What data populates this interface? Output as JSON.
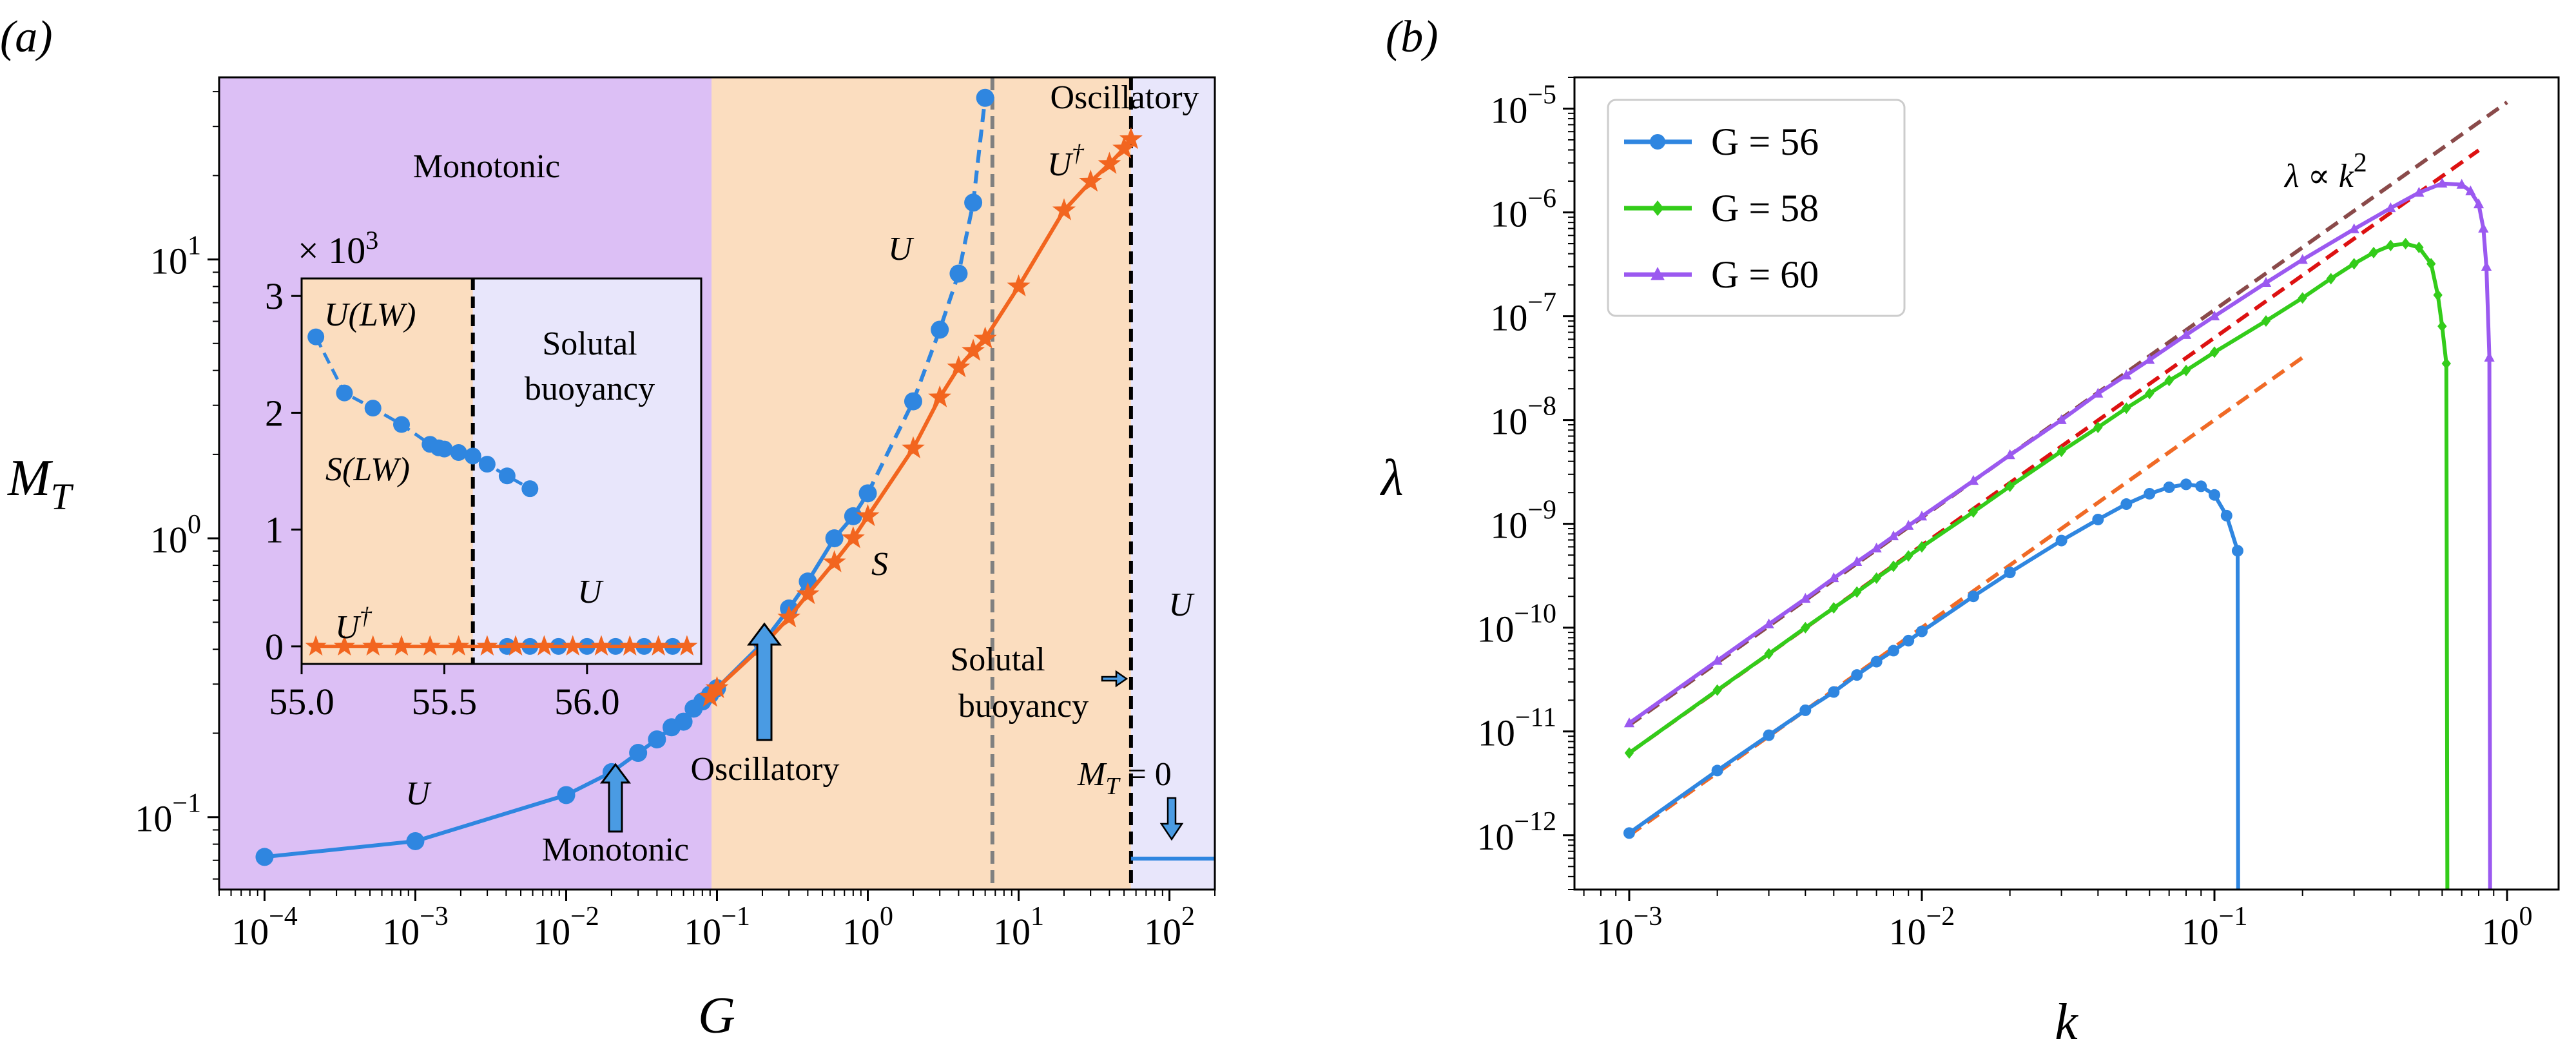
{
  "colors": {
    "monotonic_bg": "#dcbff5",
    "oscillatory_bg": "#fbddbf",
    "u_bg": "#e8e6fb",
    "blue": "#2f86e0",
    "orange": "#f2651f",
    "green": "#33cc1a",
    "purple": "#9b59f0",
    "brown": "#8a4a4a",
    "red": "#dd1111",
    "orange_dashed": "#f06a26"
  },
  "chart_data": [
    {
      "id": "a",
      "type": "scatter",
      "panel_label": "(a)",
      "xlabel": "G",
      "ylabel": "M_T",
      "xscale": "log",
      "yscale": "log",
      "xlim": [
        5e-05,
        200
      ],
      "ylim": [
        0.055,
        45
      ],
      "xticks": [
        {
          "value": 0.0001,
          "mant": "10",
          "exp": "−4"
        },
        {
          "value": 0.001,
          "mant": "10",
          "exp": "−3"
        },
        {
          "value": 0.01,
          "mant": "10",
          "exp": "−2"
        },
        {
          "value": 0.1,
          "mant": "10",
          "exp": "−1"
        },
        {
          "value": 1,
          "mant": "10",
          "exp": "0"
        },
        {
          "value": 10,
          "mant": "10",
          "exp": "1"
        },
        {
          "value": 100,
          "mant": "10",
          "exp": "2"
        }
      ],
      "yticks": [
        {
          "value": 0.1,
          "mant": "10",
          "exp": "−1"
        },
        {
          "value": 1,
          "mant": "10",
          "exp": "0"
        },
        {
          "value": 10,
          "mant": "10",
          "exp": "1"
        }
      ],
      "regions": [
        {
          "from": 5e-05,
          "to": 0.092,
          "color": "#dcbff5",
          "label": "Monotonic"
        },
        {
          "from": 0.092,
          "to": 55.6,
          "color": "#fbddbf",
          "label": "Oscillatory"
        },
        {
          "from": 55.6,
          "to": 200,
          "color": "#e8e6fb",
          "label": "U"
        }
      ],
      "vlines": [
        {
          "x": 6.7,
          "style": "dashed",
          "color": "#808080"
        },
        {
          "x": 55.6,
          "style": "dashed",
          "color": "#000000"
        }
      ],
      "series": [
        {
          "color": "#2f86e0",
          "marker": "circle",
          "x": [
            0.0001,
            0.001,
            0.01,
            0.02,
            0.03,
            0.04,
            0.05,
            0.06,
            0.07,
            0.08,
            0.09,
            0.1,
            0.2,
            0.3,
            0.4,
            0.6,
            0.8,
            1,
            2,
            3,
            4,
            5,
            6
          ],
          "y": [
            0.072,
            0.082,
            0.12,
            0.145,
            0.17,
            0.19,
            0.21,
            0.22,
            0.245,
            0.26,
            0.275,
            0.29,
            0.42,
            0.56,
            0.7,
            1.0,
            1.2,
            1.45,
            3.1,
            5.6,
            8.9,
            16,
            38
          ]
        },
        {
          "color": "#f2651f",
          "marker": "star",
          "x": [
            0.09,
            0.1,
            0.2,
            0.3,
            0.4,
            0.6,
            0.8,
            1,
            2,
            3,
            4,
            5,
            6,
            10,
            20,
            30,
            40,
            50,
            55.6
          ],
          "y": [
            0.27,
            0.29,
            0.41,
            0.52,
            0.63,
            0.82,
            1.0,
            1.2,
            2.1,
            3.2,
            4.1,
            4.7,
            5.2,
            8.0,
            15,
            19,
            22,
            25,
            27
          ]
        },
        {
          "color": "#2f86e0",
          "marker": "none",
          "x": [
            55.6,
            200
          ],
          "y": [
            0.071,
            0.071
          ]
        }
      ],
      "annotations": [
        {
          "text": "Monotonic"
        },
        {
          "text": "U"
        },
        {
          "text": "U",
          "sup": "†"
        },
        {
          "text": "S"
        },
        {
          "text": "U"
        },
        {
          "text": "U"
        },
        {
          "text": "Oscillatory"
        },
        {
          "text": "Oscillatory"
        },
        {
          "text": "Monotonic"
        },
        {
          "lines": [
            "Solutal",
            "buoyancy"
          ]
        },
        {
          "text": "M",
          "sub": "T",
          "rest": " = 0"
        }
      ],
      "inset": {
        "type": "scatter",
        "xlim": [
          55.0,
          56.4
        ],
        "ylim": [
          -0.15,
          3.15
        ],
        "multiplier_text": "× 10",
        "multiplier_exp": "3",
        "xticks": [
          "55.0",
          "55.5",
          "56.0"
        ],
        "xtick_values": [
          55.0,
          55.5,
          56.0
        ],
        "yticks": [
          "0",
          "1",
          "2",
          "3"
        ],
        "ytick_values": [
          0,
          1,
          2,
          3
        ],
        "vline": 55.6,
        "series": [
          {
            "color": "#2f86e0",
            "marker": "circle",
            "x": [
              55.05,
              55.15,
              55.25,
              55.35,
              55.45,
              55.48,
              55.5,
              55.55,
              55.6,
              55.65,
              55.72,
              55.8
            ],
            "y": [
              2.65,
              2.17,
              2.04,
              1.9,
              1.73,
              1.7,
              1.69,
              1.66,
              1.63,
              1.56,
              1.46,
              1.35
            ]
          },
          {
            "color": "#2f86e0",
            "marker": "circle",
            "x": [
              55.72,
              55.8,
              55.9,
              56.0,
              56.1,
              56.2,
              56.3
            ],
            "y": [
              0,
              0,
              0,
              0,
              0,
              0,
              0
            ]
          },
          {
            "color": "#f2651f",
            "marker": "star",
            "x": [
              55.05,
              55.15,
              55.25,
              55.35,
              55.45,
              55.55,
              55.65,
              55.75,
              55.85,
              55.95,
              56.05,
              56.15,
              56.25,
              56.35
            ],
            "y": [
              0,
              0,
              0,
              0,
              0,
              0,
              0,
              0,
              0,
              0,
              0,
              0,
              0,
              0
            ]
          }
        ],
        "annotations": [
          {
            "text": "U(LW)"
          },
          {
            "text": "S(LW)"
          },
          {
            "lines": [
              "Solutal",
              "buoyancy"
            ]
          },
          {
            "text": "U"
          },
          {
            "text": "U",
            "sup": "†"
          }
        ]
      }
    },
    {
      "id": "b",
      "type": "line",
      "panel_label": "(b)",
      "xlabel": "k",
      "ylabel": "λ",
      "xscale": "log",
      "yscale": "log",
      "xlim": [
        0.00065,
        1.5
      ],
      "ylim": [
        3e-13,
        2e-05
      ],
      "xticks": [
        {
          "value": 0.001,
          "mant": "10",
          "exp": "−3"
        },
        {
          "value": 0.01,
          "mant": "10",
          "exp": "−2"
        },
        {
          "value": 0.1,
          "mant": "10",
          "exp": "−1"
        },
        {
          "value": 1,
          "mant": "10",
          "exp": "0"
        }
      ],
      "yticks": [
        {
          "value": 1e-12,
          "mant": "10",
          "exp": "−12"
        },
        {
          "value": 1e-11,
          "mant": "10",
          "exp": "−11"
        },
        {
          "value": 1e-10,
          "mant": "10",
          "exp": "−10"
        },
        {
          "value": 1e-09,
          "mant": "10",
          "exp": "−9"
        },
        {
          "value": 1e-08,
          "mant": "10",
          "exp": "−8"
        },
        {
          "value": 1e-07,
          "mant": "10",
          "exp": "−7"
        },
        {
          "value": 1e-06,
          "mant": "10",
          "exp": "−6"
        },
        {
          "value": 1e-05,
          "mant": "10",
          "exp": "−5"
        }
      ],
      "series": [
        {
          "name": "G = 56",
          "color": "#2f86e0",
          "marker": "circle",
          "k": [
            0.001,
            0.002,
            0.003,
            0.004,
            0.005,
            0.006,
            0.007,
            0.008,
            0.009,
            0.01,
            0.015,
            0.02,
            0.03,
            0.04,
            0.05,
            0.06,
            0.07,
            0.08,
            0.09,
            0.1,
            0.11,
            0.12,
            0.1205
          ],
          "lambda": [
            1.05e-12,
            4.2e-12,
            9.2e-12,
            1.6e-11,
            2.4e-11,
            3.5e-11,
            4.7e-11,
            6e-11,
            7.5e-11,
            9.2e-11,
            2e-10,
            3.4e-10,
            6.9e-10,
            1.1e-09,
            1.55e-09,
            1.95e-09,
            2.25e-09,
            2.4e-09,
            2.3e-09,
            1.9e-09,
            1.2e-09,
            5.5e-10,
            3e-13
          ]
        },
        {
          "name": "G = 58",
          "color": "#33cc1a",
          "marker": "diamond",
          "k": [
            0.001,
            0.002,
            0.003,
            0.004,
            0.005,
            0.006,
            0.007,
            0.008,
            0.009,
            0.01,
            0.015,
            0.02,
            0.03,
            0.04,
            0.05,
            0.06,
            0.07,
            0.08,
            0.1,
            0.15,
            0.2,
            0.25,
            0.3,
            0.35,
            0.4,
            0.45,
            0.5,
            0.55,
            0.58,
            0.6,
            0.62,
            0.625
          ],
          "lambda": [
            6.2e-12,
            2.5e-11,
            5.6e-11,
            1e-10,
            1.55e-10,
            2.2e-10,
            3e-10,
            3.9e-10,
            4.9e-10,
            6e-10,
            1.3e-09,
            2.3e-09,
            5e-09,
            8.5e-09,
            1.3e-08,
            1.8e-08,
            2.4e-08,
            3e-08,
            4.5e-08,
            9e-08,
            1.5e-07,
            2.3e-07,
            3.2e-07,
            4.1e-07,
            4.8e-07,
            5e-07,
            4.6e-07,
            3.2e-07,
            1.6e-07,
            8e-08,
            3.5e-08,
            3e-13
          ]
        },
        {
          "name": "G = 60",
          "color": "#9b59f0",
          "marker": "triangle",
          "k": [
            0.001,
            0.002,
            0.003,
            0.004,
            0.005,
            0.006,
            0.007,
            0.008,
            0.009,
            0.01,
            0.015,
            0.02,
            0.03,
            0.04,
            0.05,
            0.06,
            0.08,
            0.1,
            0.15,
            0.2,
            0.3,
            0.4,
            0.5,
            0.6,
            0.7,
            0.75,
            0.8,
            0.83,
            0.85,
            0.87,
            0.875
          ],
          "lambda": [
            1.2e-11,
            4.8e-11,
            1.08e-10,
            1.9e-10,
            3e-10,
            4.3e-10,
            5.8e-10,
            7.6e-10,
            9.6e-10,
            1.18e-09,
            2.6e-09,
            4.6e-09,
            1e-08,
            1.8e-08,
            2.7e-08,
            3.8e-08,
            6.6e-08,
            1e-07,
            2.1e-07,
            3.5e-07,
            6.9e-07,
            1.1e-06,
            1.55e-06,
            1.9e-06,
            1.85e-06,
            1.6e-06,
            1.2e-06,
            7e-07,
            3e-07,
            4e-08,
            3e-13
          ]
        }
      ],
      "reference_lines": [
        {
          "color": "#8a4a4a",
          "style": "dashed",
          "k_range": [
            0.001,
            1.0
          ],
          "coef": 1.15e-05
        },
        {
          "color": "#dd1111",
          "style": "dashed",
          "k_range": [
            0.001,
            0.8
          ],
          "coef": 6.2e-06
        },
        {
          "color": "#f06a26",
          "style": "dashed",
          "k_range": [
            0.001,
            0.2
          ],
          "coef": 1e-06
        }
      ],
      "annotation": {
        "text": "λ ∝ k",
        "sup": "2"
      }
    }
  ]
}
